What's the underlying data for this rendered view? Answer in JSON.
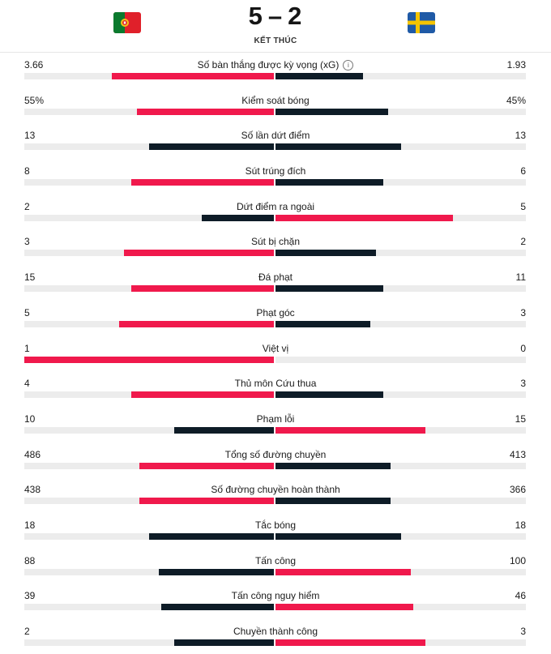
{
  "match": {
    "home_goals": "5",
    "separator": "–",
    "away_goals": "2",
    "status": "KẾT THÚC",
    "home_flag": "portugal-flag",
    "away_flag": "sweden-flag"
  },
  "colors": {
    "leader": "#f0194c",
    "trailer": "#0e1c27",
    "track": "#ececec"
  },
  "stats": [
    {
      "label": "Số bàn thắng được kỳ vọng (xG)",
      "home": "3.66",
      "away": "1.93",
      "home_frac": 0.65,
      "away_frac": 0.35,
      "info_icon": true
    },
    {
      "label": "Kiểm soát bóng",
      "home": "55%",
      "away": "45%",
      "home_frac": 0.55,
      "away_frac": 0.45
    },
    {
      "label": "Số lần dứt điểm",
      "home": "13",
      "away": "13",
      "home_frac": 0.5,
      "away_frac": 0.5
    },
    {
      "label": "Sút trúng đích",
      "home": "8",
      "away": "6",
      "home_frac": 0.57,
      "away_frac": 0.43
    },
    {
      "label": "Dứt điểm ra ngoài",
      "home": "2",
      "away": "5",
      "home_frac": 0.29,
      "away_frac": 0.71
    },
    {
      "label": "Sút bị chặn",
      "home": "3",
      "away": "2",
      "home_frac": 0.6,
      "away_frac": 0.4
    },
    {
      "label": "Đá phạt",
      "home": "15",
      "away": "11",
      "home_frac": 0.57,
      "away_frac": 0.43
    },
    {
      "label": "Phạt góc",
      "home": "5",
      "away": "3",
      "home_frac": 0.62,
      "away_frac": 0.38
    },
    {
      "label": "Việt vị",
      "home": "1",
      "away": "0",
      "home_frac": 1.0,
      "away_frac": 0.0
    },
    {
      "label": "Thủ môn Cứu thua",
      "home": "4",
      "away": "3",
      "home_frac": 0.57,
      "away_frac": 0.43
    },
    {
      "label": "Phạm lỗi",
      "home": "10",
      "away": "15",
      "home_frac": 0.4,
      "away_frac": 0.6
    },
    {
      "label": "Tổng số đường chuyền",
      "home": "486",
      "away": "413",
      "home_frac": 0.54,
      "away_frac": 0.46
    },
    {
      "label": "Số đường chuyền hoàn thành",
      "home": "438",
      "away": "366",
      "home_frac": 0.54,
      "away_frac": 0.46
    },
    {
      "label": "Tắc bóng",
      "home": "18",
      "away": "18",
      "home_frac": 0.5,
      "away_frac": 0.5
    },
    {
      "label": "Tấn công",
      "home": "88",
      "away": "100",
      "home_frac": 0.46,
      "away_frac": 0.54
    },
    {
      "label": "Tấn công nguy hiểm",
      "home": "39",
      "away": "46",
      "home_frac": 0.45,
      "away_frac": 0.55
    },
    {
      "label": "Chuyền thành công",
      "home": "2",
      "away": "3",
      "home_frac": 0.4,
      "away_frac": 0.6
    }
  ]
}
